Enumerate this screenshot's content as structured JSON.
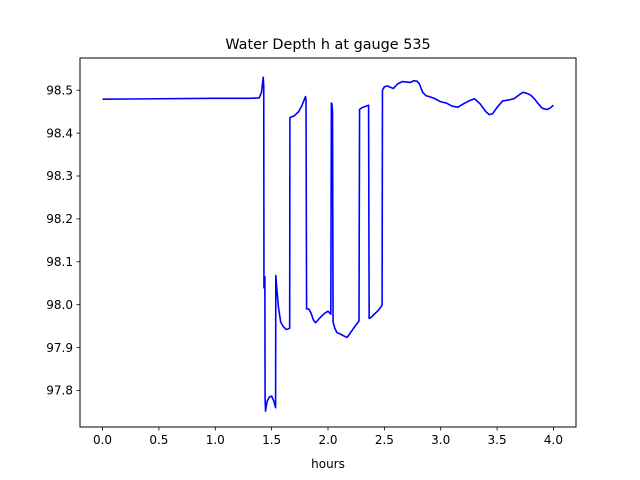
{
  "chart_data": {
    "type": "line",
    "title": "Water Depth h at gauge 535",
    "xlabel": "hours",
    "ylabel": "",
    "xlim": [
      -0.2,
      4.2
    ],
    "ylim": [
      97.715,
      98.575
    ],
    "x_ticks": [
      0.0,
      0.5,
      1.0,
      1.5,
      2.0,
      2.5,
      3.0,
      3.5,
      4.0
    ],
    "x_tick_labels": [
      "0.0",
      "0.5",
      "1.0",
      "1.5",
      "2.0",
      "2.5",
      "3.0",
      "3.5",
      "4.0"
    ],
    "y_ticks": [
      97.8,
      97.9,
      98.0,
      98.1,
      98.2,
      98.3,
      98.4,
      98.5
    ],
    "y_tick_labels": [
      "97.8",
      "97.9",
      "98.0",
      "98.1",
      "98.2",
      "98.3",
      "98.4",
      "98.5"
    ],
    "grid": false,
    "series": [
      {
        "color": "#0000ff",
        "x": [
          0.0,
          0.5,
          1.0,
          1.3,
          1.39,
          1.41,
          1.425,
          1.43,
          1.432,
          1.437,
          1.44,
          1.442,
          1.446,
          1.45,
          1.46,
          1.48,
          1.5,
          1.52,
          1.535,
          1.537,
          1.545,
          1.56,
          1.58,
          1.6,
          1.63,
          1.66,
          1.662,
          1.7,
          1.74,
          1.77,
          1.8,
          1.805,
          1.81,
          1.83,
          1.85,
          1.87,
          1.89,
          1.93,
          1.97,
          2.0,
          2.025,
          2.03,
          2.035,
          2.04,
          2.045,
          2.05,
          2.06,
          2.08,
          2.1,
          2.12,
          2.15,
          2.17,
          2.2,
          2.24,
          2.275,
          2.28,
          2.3,
          2.33,
          2.36,
          2.365,
          2.38,
          2.41,
          2.44,
          2.47,
          2.48,
          2.483,
          2.5,
          2.53,
          2.55,
          2.58,
          2.62,
          2.66,
          2.7,
          2.73,
          2.76,
          2.79,
          2.81,
          2.84,
          2.87,
          2.9,
          2.95,
          3.0,
          3.05,
          3.1,
          3.15,
          3.2,
          3.25,
          3.3,
          3.35,
          3.4,
          3.43,
          3.46,
          3.5,
          3.55,
          3.6,
          3.65,
          3.7,
          3.73,
          3.77,
          3.8,
          3.83,
          3.86,
          3.9,
          3.94,
          3.97,
          4.0
        ],
        "y": [
          98.479,
          98.48,
          98.481,
          98.481,
          98.482,
          98.495,
          98.53,
          98.51,
          98.04,
          98.038,
          98.065,
          97.78,
          97.752,
          97.76,
          97.775,
          97.785,
          97.787,
          97.775,
          97.76,
          98.068,
          98.04,
          97.995,
          97.96,
          97.95,
          97.942,
          97.945,
          98.436,
          98.44,
          98.45,
          98.465,
          98.485,
          98.475,
          97.99,
          97.99,
          97.98,
          97.965,
          97.958,
          97.97,
          97.98,
          97.985,
          97.978,
          98.47,
          98.468,
          98.45,
          97.96,
          97.955,
          97.945,
          97.935,
          97.933,
          97.93,
          97.926,
          97.924,
          97.935,
          97.95,
          97.962,
          98.455,
          98.459,
          98.462,
          98.465,
          97.968,
          97.97,
          97.978,
          97.985,
          97.995,
          98.0,
          98.5,
          98.508,
          98.51,
          98.507,
          98.504,
          98.515,
          98.52,
          98.519,
          98.518,
          98.522,
          98.521,
          98.515,
          98.495,
          98.487,
          98.485,
          98.48,
          98.473,
          98.47,
          98.463,
          98.46,
          98.468,
          98.475,
          98.48,
          98.468,
          98.45,
          98.443,
          98.445,
          98.46,
          98.475,
          98.477,
          98.48,
          98.49,
          98.495,
          98.492,
          98.488,
          98.48,
          98.47,
          98.458,
          98.455,
          98.458,
          98.465
        ]
      }
    ]
  }
}
